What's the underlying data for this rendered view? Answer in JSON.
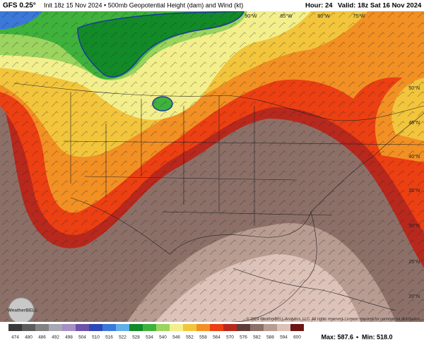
{
  "header": {
    "model": "GFS 0.25°",
    "description": "Init 18z 15 Nov 2024 • 500mb Geopotential Height (dam) and Wind (kt)",
    "hour": "Hour: 24",
    "valid": "Valid: 18z Sat 16 Nov 2024"
  },
  "map": {
    "lon_labels": [
      "90°W",
      "85°W",
      "80°W",
      "75°W"
    ],
    "lat_labels": [
      "50°N",
      "45°N",
      "40°N",
      "35°N",
      "30°N",
      "25°N",
      "20°N"
    ],
    "copyright": "© 2024 WeatherBELL Analytics, LLC. All rights reserved. License required for commercial distribution.",
    "logo": "WeatherBELL"
  },
  "legend": [
    {
      "label": "474",
      "color": "#3a3a3a"
    },
    {
      "label": "480",
      "color": "#5c5c5c"
    },
    {
      "label": "486",
      "color": "#828282"
    },
    {
      "label": "492",
      "color": "#a8a8b4"
    },
    {
      "label": "498",
      "color": "#a58fc4"
    },
    {
      "label": "504",
      "color": "#6e52a8"
    },
    {
      "label": "510",
      "color": "#2f46b8"
    },
    {
      "label": "516",
      "color": "#3b78d8"
    },
    {
      "label": "522",
      "color": "#62aee8"
    },
    {
      "label": "528",
      "color": "#138a28"
    },
    {
      "label": "534",
      "color": "#3fb23c"
    },
    {
      "label": "540",
      "color": "#9bd45e"
    },
    {
      "label": "546",
      "color": "#f3ef8c"
    },
    {
      "label": "552",
      "color": "#f2c53c"
    },
    {
      "label": "558",
      "color": "#f29024"
    },
    {
      "label": "564",
      "color": "#ec3f12"
    },
    {
      "label": "570",
      "color": "#b8281c"
    },
    {
      "label": "576",
      "color": "#5e3c38"
    },
    {
      "label": "582",
      "color": "#8c7068"
    },
    {
      "label": "588",
      "color": "#b89c92"
    },
    {
      "label": "594",
      "color": "#dcc2b8"
    },
    {
      "label": "600",
      "color": "#6e1414"
    }
  ],
  "footer": {
    "max": "Max: 587.6",
    "min": "Min: 518.0"
  }
}
